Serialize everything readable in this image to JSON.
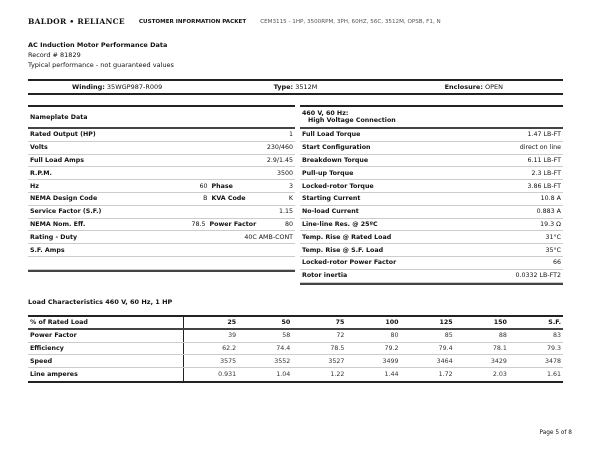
{
  "header": {
    "brand": "BALDOR • RELIANCE",
    "packet": "CUSTOMER INFORMATION PACKET",
    "model": "CEM3115 - 1HP, 3500RPM, 3PH, 60HZ, 56C, 3512M, OPSB, F1, N"
  },
  "doc": {
    "title": "AC Induction Motor Performance Data",
    "record": "Record # 81829",
    "note": "Typical performance - not guaranteed values"
  },
  "winding": {
    "winding_label": "Winding:",
    "winding": "35WGP987-R009",
    "type_label": "Type:",
    "type": "3512M",
    "enclosure_label": "Enclosure:",
    "enclosure": "OPEN"
  },
  "nameplate": {
    "title": "Nameplate Data",
    "rows": [
      {
        "label": "Rated Output (HP)",
        "value": "1"
      },
      {
        "label": "Volts",
        "value": "230/460"
      },
      {
        "label": "Full Load Amps",
        "value": "2.9/1.45"
      },
      {
        "label": "R.P.M.",
        "value": "3500"
      },
      {
        "label": "Hz",
        "value": "60",
        "label2": "Phase",
        "value2": "3"
      },
      {
        "label": "NEMA Design Code",
        "value": "B",
        "label2": "KVA Code",
        "value2": "K"
      },
      {
        "label": "Service Factor (S.F.)",
        "value": "1.15"
      },
      {
        "label": "NEMA Nom. Eff.",
        "value": "78.5",
        "label2": "Power Factor",
        "value2": "80"
      },
      {
        "label": "Rating - Duty",
        "value": "40C AMB-CONT"
      },
      {
        "label": "S.F. Amps",
        "value": ""
      }
    ]
  },
  "connection": {
    "title1": "460 V, 60 Hz:",
    "title2": "High Voltage Connection",
    "rows": [
      {
        "label": "Full Load Torque",
        "value": "1.47 LB-FT"
      },
      {
        "label": "Start Configuration",
        "value": "direct on line"
      },
      {
        "label": "Breakdown Torque",
        "value": "6.11 LB-FT"
      },
      {
        "label": "Pull-up Torque",
        "value": "2.3 LB-FT"
      },
      {
        "label": "Locked-rotor Torque",
        "value": "3.86 LB-FT"
      },
      {
        "label": "Starting Current",
        "value": "10.8 A"
      },
      {
        "label": "No-load Current",
        "value": "0.883 A"
      },
      {
        "label": "Line-line Res. @ 25ºC",
        "value": "19.3 Ω"
      },
      {
        "label": "Temp. Rise @ Rated Load",
        "value": "31°C"
      },
      {
        "label": "Temp. Rise @ S.F. Load",
        "value": "35°C"
      },
      {
        "label": "Locked-rotor Power Factor",
        "value": "66"
      },
      {
        "label": "Rotor inertia",
        "value": "0.0332 LB-FT2"
      }
    ]
  },
  "load": {
    "title": "Load Characteristics 460 V, 60 Hz, 1 HP",
    "header": [
      "% of Rated Load",
      "25",
      "50",
      "75",
      "100",
      "125",
      "150",
      "S.F."
    ],
    "rows": [
      [
        "Power Factor",
        "39",
        "58",
        "72",
        "80",
        "85",
        "88",
        "83"
      ],
      [
        "Efficiency",
        "62.2",
        "74.4",
        "78.5",
        "79.2",
        "79.4",
        "78.1",
        "79.3"
      ],
      [
        "Speed",
        "3575",
        "3552",
        "3527",
        "3499",
        "3464",
        "3429",
        "3478"
      ],
      [
        "Line amperes",
        "0.931",
        "1.04",
        "1.22",
        "1.44",
        "1.72",
        "2.03",
        "1.61"
      ]
    ]
  },
  "footer": {
    "page": "Page 5 of 8"
  }
}
